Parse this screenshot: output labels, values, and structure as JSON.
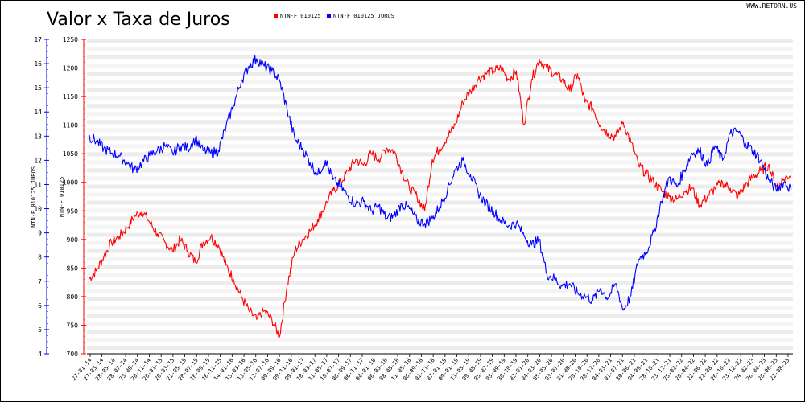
{
  "header": {
    "title": "Valor x Taxa de Juros",
    "site": "WWW.RETORN.US"
  },
  "colors": {
    "price": "#ff0000",
    "rate": "#0000ff",
    "grid": "#e5e5e5"
  },
  "chart_data": {
    "type": "line",
    "title": "Valor x Taxa de Juros",
    "legend_placement": "top-center",
    "grid": true,
    "y_left_outer": {
      "label": "NTN-F 010125 JUROS",
      "ylim": [
        4,
        17
      ],
      "ticks": [
        4,
        5,
        6,
        7,
        8,
        9,
        10,
        11,
        12,
        13,
        14,
        15,
        16,
        17
      ],
      "color": "#0000ff"
    },
    "y_left_inner": {
      "label": "NTN-F 010125",
      "ylim": [
        700,
        1250
      ],
      "ticks": [
        700,
        750,
        800,
        850,
        900,
        950,
        1000,
        1050,
        1100,
        1150,
        1200,
        1250
      ],
      "color": "#ff0000"
    },
    "x_ticks": [
      "27-01-14",
      "27-03-14",
      "28-05-14",
      "28-07-14",
      "23-09-14",
      "20-11-14",
      "20-01-15",
      "20-03-15",
      "21-05-15",
      "20-07-15",
      "16-09-15",
      "16-11-15",
      "14-01-16",
      "15-03-16",
      "13-05-16",
      "12-07-16",
      "09-09-16",
      "09-11-16",
      "09-01-17",
      "10-03-17",
      "11-05-17",
      "10-07-17",
      "06-09-17",
      "06-11-17",
      "04-01-18",
      "06-03-18",
      "08-05-18",
      "11-05-18",
      "06-09-18",
      "01-11-18",
      "07-01-19",
      "09-01-19",
      "11-03-19",
      "09-05-19",
      "05-07-19",
      "03-09-19",
      "30-10-19",
      "02-01-20",
      "04-03-20",
      "05-05-20",
      "03-07-20",
      "31-08-20",
      "29-10-20",
      "30-12-20",
      "04-03-21",
      "01-07-21",
      "30-06-21",
      "04-09-21",
      "28-10-21",
      "23-12-21",
      "25-02-22",
      "20-04-22",
      "22-06-22",
      "22-08-22",
      "26-10-22",
      "23-12-22",
      "24-02-23",
      "26-04-23",
      "26-06-23",
      "22-08-23"
    ],
    "series": [
      {
        "name": "NTN-F 010125",
        "axis": "left_inner",
        "color": "#ff0000",
        "points": [
          [
            0,
            830
          ],
          [
            1,
            845
          ],
          [
            2,
            870
          ],
          [
            3,
            895
          ],
          [
            4,
            905
          ],
          [
            5,
            920
          ],
          [
            6,
            940
          ],
          [
            7,
            950
          ],
          [
            8,
            930
          ],
          [
            9,
            910
          ],
          [
            10,
            895
          ],
          [
            11,
            880
          ],
          [
            12,
            900
          ],
          [
            13,
            880
          ],
          [
            14,
            860
          ],
          [
            15,
            895
          ],
          [
            16,
            905
          ],
          [
            17,
            890
          ],
          [
            18,
            855
          ],
          [
            19,
            830
          ],
          [
            20,
            800
          ],
          [
            21,
            775
          ],
          [
            22,
            760
          ],
          [
            23,
            775
          ],
          [
            24,
            760
          ],
          [
            25,
            730
          ],
          [
            26,
            820
          ],
          [
            27,
            880
          ],
          [
            28,
            900
          ],
          [
            29,
            915
          ],
          [
            30,
            935
          ],
          [
            31,
            960
          ],
          [
            32,
            985
          ],
          [
            33,
            1000
          ],
          [
            34,
            1020
          ],
          [
            35,
            1040
          ],
          [
            36,
            1030
          ],
          [
            37,
            1050
          ],
          [
            38,
            1040
          ],
          [
            39,
            1060
          ],
          [
            40,
            1055
          ],
          [
            41,
            1020
          ],
          [
            42,
            990
          ],
          [
            43,
            975
          ],
          [
            44,
            950
          ],
          [
            45,
            1040
          ],
          [
            46,
            1060
          ],
          [
            47,
            1080
          ],
          [
            48,
            1100
          ],
          [
            49,
            1140
          ],
          [
            50,
            1160
          ],
          [
            51,
            1180
          ],
          [
            52,
            1190
          ],
          [
            53,
            1195
          ],
          [
            54,
            1200
          ],
          [
            55,
            1180
          ],
          [
            56,
            1195
          ],
          [
            57,
            1100
          ],
          [
            58,
            1180
          ],
          [
            59,
            1215
          ],
          [
            60,
            1200
          ],
          [
            61,
            1190
          ],
          [
            62,
            1180
          ],
          [
            63,
            1160
          ],
          [
            64,
            1190
          ],
          [
            65,
            1140
          ],
          [
            66,
            1130
          ],
          [
            67,
            1100
          ],
          [
            68,
            1085
          ],
          [
            69,
            1080
          ],
          [
            70,
            1105
          ],
          [
            71,
            1070
          ],
          [
            72,
            1030
          ],
          [
            73,
            1015
          ],
          [
            74,
            1000
          ],
          [
            75,
            985
          ],
          [
            76,
            975
          ],
          [
            77,
            970
          ],
          [
            78,
            985
          ],
          [
            79,
            990
          ],
          [
            80,
            960
          ],
          [
            81,
            975
          ],
          [
            82,
            990
          ],
          [
            83,
            1000
          ],
          [
            84,
            990
          ],
          [
            85,
            975
          ],
          [
            86,
            995
          ],
          [
            87,
            1010
          ],
          [
            88,
            1020
          ],
          [
            89,
            1030
          ],
          [
            90,
            995
          ],
          [
            91,
            1005
          ],
          [
            92,
            1015
          ]
        ]
      },
      {
        "name": "NTN-F 010125 JUROS",
        "axis": "left_outer",
        "color": "#0000ff",
        "points": [
          [
            0,
            13.0
          ],
          [
            1,
            12.8
          ],
          [
            2,
            12.5
          ],
          [
            3,
            12.3
          ],
          [
            4,
            12.2
          ],
          [
            5,
            11.9
          ],
          [
            6,
            11.6
          ],
          [
            7,
            11.9
          ],
          [
            8,
            12.2
          ],
          [
            9,
            12.4
          ],
          [
            10,
            12.6
          ],
          [
            11,
            12.3
          ],
          [
            12,
            12.6
          ],
          [
            13,
            12.5
          ],
          [
            14,
            12.9
          ],
          [
            15,
            12.4
          ],
          [
            16,
            12.3
          ],
          [
            17,
            12.4
          ],
          [
            18,
            13.4
          ],
          [
            19,
            14.3
          ],
          [
            20,
            15.3
          ],
          [
            21,
            15.9
          ],
          [
            22,
            16.2
          ],
          [
            23,
            15.9
          ],
          [
            24,
            15.7
          ],
          [
            25,
            15.3
          ],
          [
            26,
            14.1
          ],
          [
            27,
            12.9
          ],
          [
            28,
            12.5
          ],
          [
            29,
            11.9
          ],
          [
            30,
            11.4
          ],
          [
            31,
            12.0
          ],
          [
            32,
            11.2
          ],
          [
            33,
            10.9
          ],
          [
            34,
            10.5
          ],
          [
            35,
            10.2
          ],
          [
            36,
            10.3
          ],
          [
            37,
            9.9
          ],
          [
            38,
            10.1
          ],
          [
            39,
            9.6
          ],
          [
            40,
            9.7
          ],
          [
            41,
            10.2
          ],
          [
            42,
            10.0
          ],
          [
            43,
            9.5
          ],
          [
            44,
            9.4
          ],
          [
            45,
            9.6
          ],
          [
            46,
            10.1
          ],
          [
            47,
            10.8
          ],
          [
            48,
            11.6
          ],
          [
            49,
            12.0
          ],
          [
            50,
            11.4
          ],
          [
            51,
            10.7
          ],
          [
            52,
            10.2
          ],
          [
            53,
            9.9
          ],
          [
            54,
            9.5
          ],
          [
            55,
            9.3
          ],
          [
            56,
            9.4
          ],
          [
            57,
            8.9
          ],
          [
            58,
            8.5
          ],
          [
            59,
            8.7
          ],
          [
            60,
            7.3
          ],
          [
            61,
            7.1
          ],
          [
            62,
            6.8
          ],
          [
            63,
            6.9
          ],
          [
            64,
            6.5
          ],
          [
            65,
            6.4
          ],
          [
            66,
            6.2
          ],
          [
            67,
            6.7
          ],
          [
            68,
            6.3
          ],
          [
            69,
            6.9
          ],
          [
            70,
            5.8
          ],
          [
            71,
            6.4
          ],
          [
            72,
            7.9
          ],
          [
            73,
            8.2
          ],
          [
            74,
            9.0
          ],
          [
            75,
            10.3
          ],
          [
            76,
            11.3
          ],
          [
            77,
            10.9
          ],
          [
            78,
            11.6
          ],
          [
            79,
            12.3
          ],
          [
            80,
            12.4
          ],
          [
            81,
            11.8
          ],
          [
            82,
            12.6
          ],
          [
            83,
            12.0
          ],
          [
            84,
            13.1
          ],
          [
            85,
            13.2
          ],
          [
            86,
            12.7
          ],
          [
            87,
            12.4
          ],
          [
            88,
            12.0
          ],
          [
            89,
            11.2
          ],
          [
            90,
            10.8
          ],
          [
            91,
            11.1
          ],
          [
            92,
            10.8
          ]
        ]
      }
    ]
  }
}
